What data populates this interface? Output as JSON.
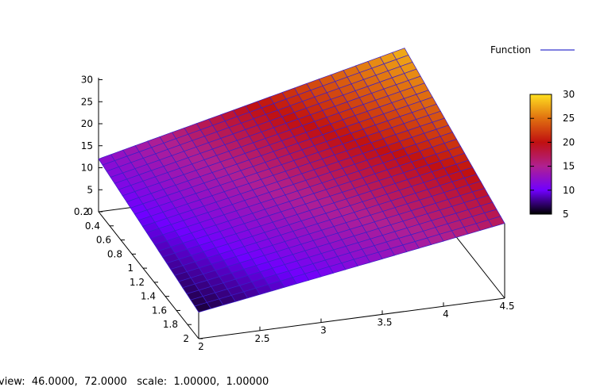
{
  "chart_data": {
    "type": "surface3d",
    "series": [
      {
        "name": "Function",
        "color": "#0000c0"
      }
    ],
    "x": {
      "range": [
        2,
        4.5
      ],
      "ticks": [
        "2",
        "2.5",
        "3",
        "3.5",
        "4",
        "4.5"
      ]
    },
    "y": {
      "range": [
        0.2,
        2
      ],
      "ticks": [
        "0.2",
        "0.4",
        "0.6",
        "0.8",
        "1",
        "1.2",
        "1.4",
        "1.6",
        "1.8",
        "2"
      ]
    },
    "z": {
      "range": [
        0,
        30
      ],
      "ticks": [
        "0",
        "5",
        "10",
        "15",
        "20",
        "25",
        "30"
      ]
    },
    "colorbox": {
      "range": [
        5,
        30
      ],
      "ticks": [
        "5",
        "10",
        "15",
        "20",
        "25",
        "30"
      ],
      "palette": [
        "#000000",
        "#7000ff",
        "#b02090",
        "#c01010",
        "#e07010",
        "#ffe020"
      ]
    },
    "corners": {
      "x2_y2": 6,
      "x4.5_y2": 17,
      "x4.5_y0.2": 28,
      "x2_y0.2": 12
    },
    "grid_resolution": [
      25,
      25
    ],
    "legend_position": "top-right"
  },
  "status": {
    "view_label": "view:",
    "view_values": "46.0000,  72.0000",
    "scale_label": "scale:",
    "scale_values": "1.00000,  1.00000"
  }
}
